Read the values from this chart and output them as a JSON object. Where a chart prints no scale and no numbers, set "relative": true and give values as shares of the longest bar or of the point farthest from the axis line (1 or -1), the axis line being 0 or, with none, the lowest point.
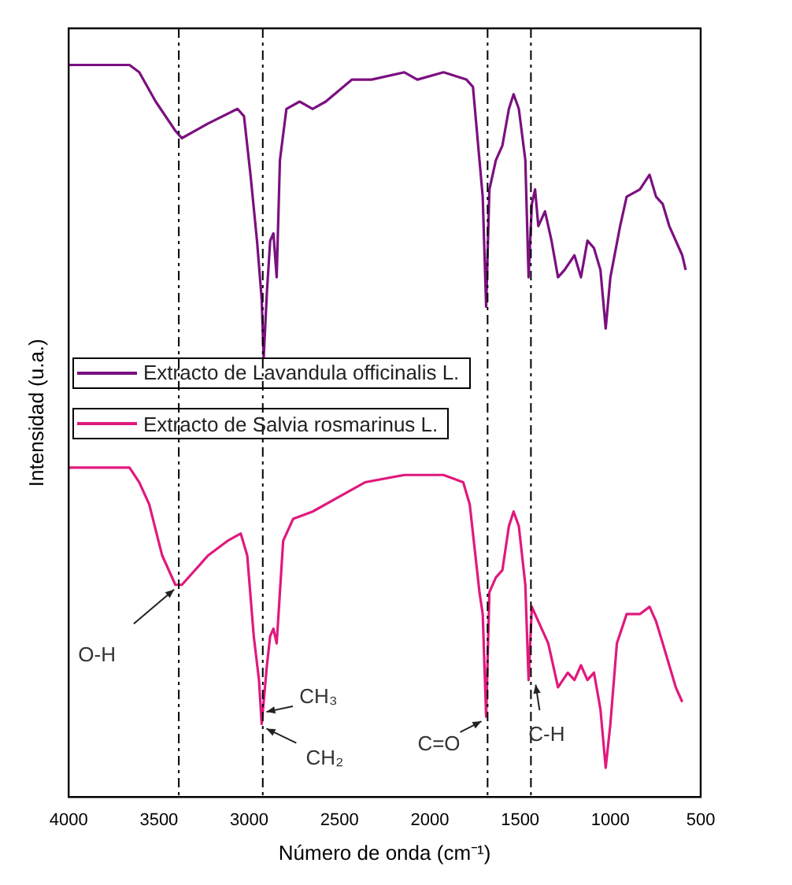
{
  "chart_data": {
    "type": "line",
    "xlabel": "Número de onda (cm⁻¹)",
    "ylabel": "Intensidad (u.a.)",
    "relative": true,
    "xlim": [
      4000,
      500
    ],
    "xticks": [
      4000,
      3500,
      3000,
      2500,
      2000,
      1500,
      1000,
      500
    ],
    "grid": false,
    "legend": "left",
    "marker": "none",
    "line_style": "solid",
    "series": [
      {
        "name": "Extracto de Lavandula officinalis L.",
        "color": "#7b1080",
        "x": [
          3996,
          3663,
          3609,
          3518,
          3409,
          3373,
          3228,
          3065,
          3029,
          2993,
          2957,
          2931,
          2920,
          2902,
          2884,
          2866,
          2848,
          2830,
          2794,
          2721,
          2649,
          2576,
          2431,
          2323,
          2141,
          2069,
          1924,
          1797,
          1761,
          1725,
          1707,
          1688,
          1670,
          1634,
          1598,
          1562,
          1536,
          1507,
          1471,
          1453,
          1435,
          1417,
          1399,
          1362,
          1326,
          1290,
          1254,
          1199,
          1163,
          1127,
          1091,
          1055,
          1026,
          1000,
          946,
          910,
          837,
          783,
          747,
          710,
          674,
          638,
          602,
          583
        ],
        "values": [
          1.0,
          1.0,
          0.99,
          0.95,
          0.91,
          0.9,
          0.92,
          0.94,
          0.93,
          0.85,
          0.76,
          0.68,
          0.6,
          0.69,
          0.76,
          0.77,
          0.71,
          0.87,
          0.94,
          0.95,
          0.94,
          0.95,
          0.98,
          0.98,
          0.99,
          0.98,
          0.99,
          0.98,
          0.97,
          0.87,
          0.82,
          0.67,
          0.83,
          0.87,
          0.89,
          0.94,
          0.96,
          0.94,
          0.87,
          0.71,
          0.81,
          0.83,
          0.78,
          0.8,
          0.76,
          0.71,
          0.72,
          0.74,
          0.71,
          0.76,
          0.75,
          0.72,
          0.64,
          0.71,
          0.78,
          0.82,
          0.83,
          0.85,
          0.82,
          0.81,
          0.78,
          0.76,
          0.74,
          0.72
        ]
      },
      {
        "name": "Extracto de Salvia rosmarinus L.",
        "color": "#e0197d",
        "x": [
          3996,
          3663,
          3609,
          3554,
          3482,
          3409,
          3373,
          3228,
          3120,
          3047,
          3011,
          2975,
          2946,
          2931,
          2902,
          2884,
          2866,
          2848,
          2812,
          2757,
          2649,
          2504,
          2359,
          2141,
          1924,
          1815,
          1779,
          1725,
          1707,
          1688,
          1670,
          1634,
          1598,
          1562,
          1536,
          1507,
          1471,
          1453,
          1435,
          1399,
          1344,
          1290,
          1236,
          1199,
          1163,
          1127,
          1091,
          1055,
          1026,
          1000,
          964,
          910,
          837,
          783,
          747,
          710,
          674,
          638,
          602
        ],
        "values": [
          0.45,
          0.45,
          0.43,
          0.4,
          0.33,
          0.29,
          0.29,
          0.33,
          0.35,
          0.36,
          0.33,
          0.22,
          0.16,
          0.1,
          0.18,
          0.22,
          0.23,
          0.21,
          0.35,
          0.38,
          0.39,
          0.41,
          0.43,
          0.44,
          0.44,
          0.43,
          0.4,
          0.28,
          0.25,
          0.11,
          0.28,
          0.3,
          0.31,
          0.37,
          0.39,
          0.37,
          0.29,
          0.16,
          0.26,
          0.24,
          0.21,
          0.15,
          0.17,
          0.16,
          0.18,
          0.16,
          0.17,
          0.12,
          0.04,
          0.1,
          0.21,
          0.25,
          0.25,
          0.26,
          0.24,
          0.21,
          0.18,
          0.15,
          0.13
        ]
      }
    ],
    "ref_lines": [
      {
        "axis": "x",
        "value": 3390,
        "line_style": "dashed",
        "color": "#000000"
      },
      {
        "axis": "x",
        "value": 2925,
        "line_style": "dashed",
        "color": "#000000"
      },
      {
        "axis": "x",
        "value": 1680,
        "line_style": "dashed",
        "color": "#000000"
      },
      {
        "axis": "x",
        "value": 1440,
        "line_style": "dashed",
        "color": "#000000"
      }
    ],
    "annotations": [
      {
        "text": "O-H",
        "x": 3390,
        "y": 0.29
      },
      {
        "text": "CH₃",
        "x": 2931,
        "y": 0.11
      },
      {
        "text": "CH₂",
        "x": 2931,
        "y": 0.1
      },
      {
        "text": "C=O",
        "x": 1688,
        "y": 0.11
      },
      {
        "text": "C-H",
        "x": 1440,
        "y": 0.16
      }
    ]
  }
}
